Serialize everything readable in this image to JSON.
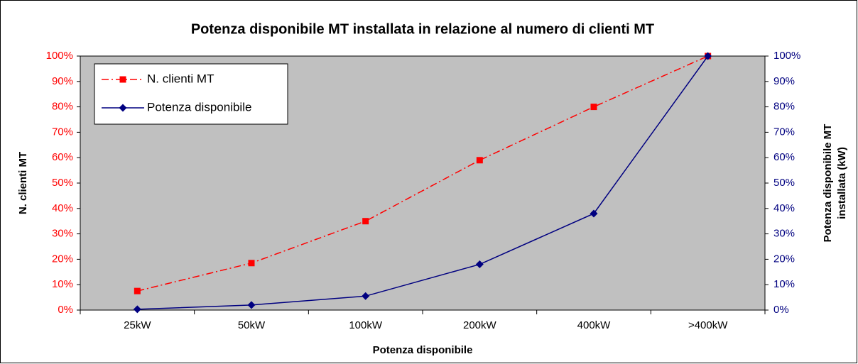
{
  "chart_data": {
    "type": "line",
    "title": "Potenza disponibile MT installata in relazione al numero di clienti MT",
    "xlabel": "Potenza disponibile",
    "ylabel": "N. clienti MT",
    "y2label": [
      "Potenza disponibile MT",
      "installata (kW)"
    ],
    "categories": [
      "25kW",
      "50kW",
      "100kW",
      "200kW",
      "400kW",
      ">400kW"
    ],
    "series": [
      {
        "name": "N. clienti MT",
        "color": "#ff0000",
        "dash": "dashdot",
        "marker": "square",
        "values": [
          7.5,
          18.5,
          35,
          59,
          80,
          100
        ]
      },
      {
        "name": "Potenza disponibile",
        "color": "#000080",
        "dash": "solid",
        "marker": "diamond",
        "axis": "y2",
        "values": [
          0.3,
          2,
          5.5,
          18,
          38,
          100
        ]
      }
    ],
    "ylim": [
      0,
      100
    ],
    "yticks": [
      {
        "value": 0,
        "label": "0%"
      },
      {
        "value": 10,
        "label": "10%"
      },
      {
        "value": 20,
        "label": "20%"
      },
      {
        "value": 30,
        "label": "30%"
      },
      {
        "value": 40,
        "label": "40%"
      },
      {
        "value": 50,
        "label": "50%"
      },
      {
        "value": 60,
        "label": "60%"
      },
      {
        "value": 70,
        "label": "70%"
      },
      {
        "value": 80,
        "label": "80%"
      },
      {
        "value": 90,
        "label": "90%"
      },
      {
        "value": 100,
        "label": "100%"
      }
    ],
    "y2lim": [
      0,
      100
    ],
    "y2ticks": [
      {
        "value": 0,
        "label": "0%"
      },
      {
        "value": 10,
        "label": "10%"
      },
      {
        "value": 20,
        "label": "20%"
      },
      {
        "value": 30,
        "label": "30%"
      },
      {
        "value": 40,
        "label": "40%"
      },
      {
        "value": 50,
        "label": "50%"
      },
      {
        "value": 60,
        "label": "60%"
      },
      {
        "value": 70,
        "label": "70%"
      },
      {
        "value": 80,
        "label": "80%"
      },
      {
        "value": 90,
        "label": "90%"
      },
      {
        "value": 100,
        "label": "100%"
      }
    ],
    "ytick_color": "#ff0000",
    "y2tick_color": "#000080",
    "background": "#c0c0c0",
    "legend": "upper left"
  }
}
